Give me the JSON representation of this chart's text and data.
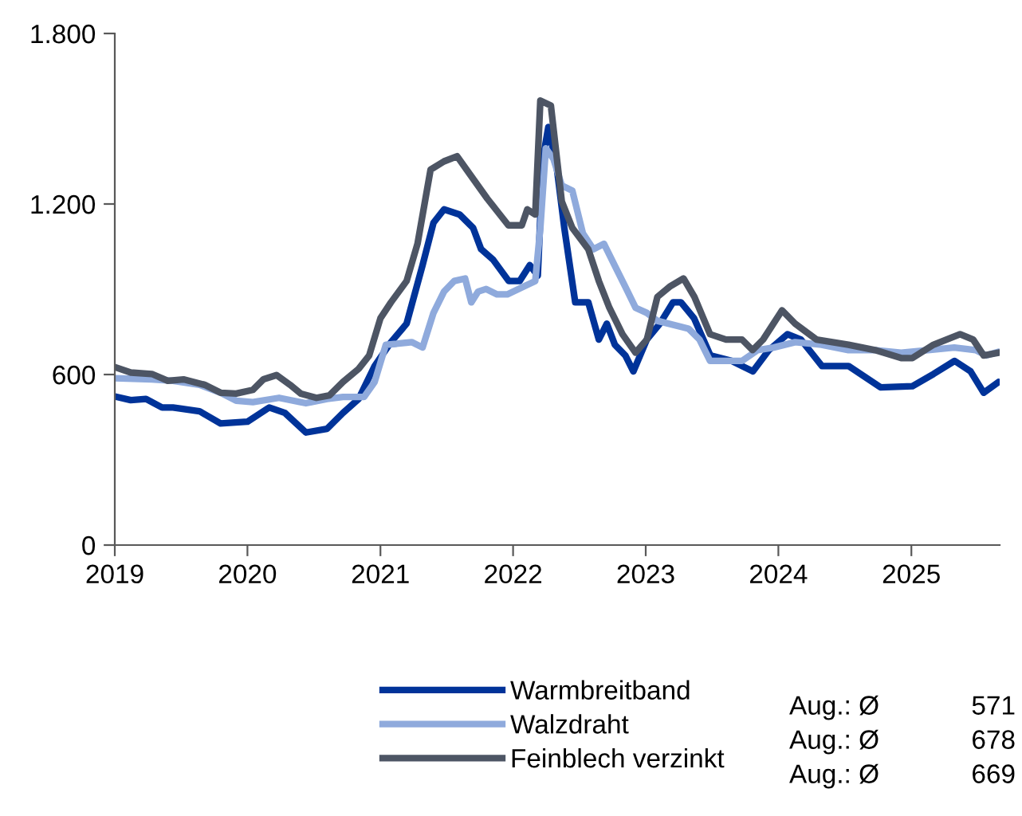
{
  "chart_data": {
    "type": "line",
    "xlim": [
      "2019",
      "2025-09-01"
    ],
    "xticks": [
      "2019",
      "2020",
      "2021",
      "2022",
      "2023",
      "2024",
      "2025"
    ],
    "ylim": [
      0,
      1800
    ],
    "yticks": [
      0,
      600,
      {
        "value": 1200,
        "label": "1.200"
      },
      {
        "value": 1800,
        "label": "1.800"
      }
    ],
    "grid": false,
    "legend": "bottom",
    "marker": "none",
    "line_style": "solid",
    "series": [
      {
        "name": "Warmbreitband",
        "color": "#003399",
        "x": [
          "2019-01-01",
          "2019-02-14",
          "2019-03-28",
          "2019-05-11",
          "2019-06-10",
          "2019-08-22",
          "2019-10-19",
          "2020-01-01",
          "2020-03-01",
          "2020-04-13",
          "2020-06-10",
          "2020-08-07",
          "2020-09-20",
          "2020-11-02",
          "2020-12-16",
          "2021-01-30",
          "2021-03-14",
          "2021-04-27",
          "2021-05-27",
          "2021-06-25",
          "2021-08-07",
          "2021-09-13",
          "2021-10-05",
          "2021-11-07",
          "2021-12-20",
          "2022-01-19",
          "2022-02-16",
          "2022-03-10",
          "2022-03-24",
          "2022-04-08",
          "2022-04-30",
          "2022-05-22",
          "2022-06-21",
          "2022-07-27",
          "2022-08-25",
          "2022-09-16",
          "2022-10-08",
          "2022-11-06",
          "2022-11-28",
          "2023-01-04",
          "2023-02-09",
          "2023-03-17",
          "2023-04-08",
          "2023-05-14",
          "2023-06-28",
          "2023-08-25",
          "2023-10-23",
          "2023-12-06",
          "2024-01-26",
          "2024-03-03",
          "2024-04-30",
          "2024-07-12",
          "2024-10-08",
          "2025-01-04",
          "2025-03-03",
          "2025-04-30",
          "2025-06-13",
          "2025-07-19",
          "2025-08-29"
        ],
        "values": [
          523,
          510,
          514,
          484,
          484,
          471,
          428,
          434,
          484,
          465,
          396,
          409,
          465,
          514,
          630,
          714,
          779,
          985,
          1134,
          1181,
          1163,
          1116,
          1041,
          1004,
          929,
          929,
          985,
          948,
          1359,
          1471,
          1340,
          1116,
          854,
          854,
          723,
          779,
          705,
          667,
          611,
          723,
          779,
          854,
          854,
          798,
          667,
          648,
          611,
          686,
          742,
          723,
          630,
          630,
          555,
          559,
          602,
          648,
          611,
          536,
          574
        ]
      },
      {
        "name": "Walzdraht",
        "color": "#8faadc",
        "x": [
          "2019-01-01",
          "2019-04-13",
          "2019-06-10",
          "2019-08-22",
          "2019-10-19",
          "2019-12-01",
          "2020-01-16",
          "2020-03-28",
          "2020-06-10",
          "2020-08-07",
          "2020-09-20",
          "2020-11-17",
          "2020-12-16",
          "2021-01-16",
          "2021-02-14",
          "2021-03-28",
          "2021-04-27",
          "2021-05-27",
          "2021-06-25",
          "2021-07-23",
          "2021-08-22",
          "2021-09-08",
          "2021-09-27",
          "2021-10-19",
          "2021-11-18",
          "2021-12-16",
          "2022-02-02",
          "2022-03-03",
          "2022-03-17",
          "2022-04-01",
          "2022-04-22",
          "2022-05-15",
          "2022-06-13",
          "2022-07-12",
          "2022-08-10",
          "2022-09-08",
          "2022-10-07",
          "2022-11-05",
          "2022-12-04",
          "2023-01-04",
          "2023-02-02",
          "2023-04-29",
          "2023-05-29",
          "2023-06-27",
          "2023-08-10",
          "2023-09-23",
          "2023-11-05",
          "2023-12-19",
          "2024-02-16",
          "2024-04-29",
          "2024-07-12",
          "2024-09-23",
          "2024-12-04",
          "2025-02-16",
          "2025-04-29",
          "2025-06-27",
          "2025-07-26",
          "2025-08-29"
        ],
        "values": [
          587,
          583,
          578,
          564,
          536,
          508,
          503,
          518,
          499,
          514,
          521,
          521,
          574,
          705,
          708,
          714,
          695,
          817,
          892,
          929,
          938,
          854,
          892,
          901,
          882,
          882,
          911,
          929,
          1116,
          1396,
          1359,
          1265,
          1247,
          1097,
          1041,
          1060,
          985,
          911,
          835,
          817,
          789,
          761,
          723,
          648,
          648,
          648,
          686,
          695,
          714,
          705,
          686,
          686,
          677,
          686,
          695,
          686,
          667,
          680
        ]
      },
      {
        "name": "Feinblech verzinkt",
        "color": "#4d5564",
        "x": [
          "2019-01-01",
          "2019-02-14",
          "2019-04-13",
          "2019-05-27",
          "2019-07-09",
          "2019-09-05",
          "2019-10-19",
          "2019-12-01",
          "2020-01-16",
          "2020-02-14",
          "2020-03-21",
          "2020-04-27",
          "2020-05-27",
          "2020-07-09",
          "2020-08-14",
          "2020-09-20",
          "2020-11-02",
          "2020-12-01",
          "2021-01-01",
          "2021-01-30",
          "2021-03-14",
          "2021-04-13",
          "2021-05-19",
          "2021-06-25",
          "2021-07-31",
          "2021-09-05",
          "2021-10-22",
          "2021-11-20",
          "2021-12-19",
          "2022-01-25",
          "2022-02-09",
          "2022-03-03",
          "2022-03-17",
          "2022-04-15",
          "2022-05-15",
          "2022-06-13",
          "2022-07-27",
          "2022-08-25",
          "2022-09-23",
          "2022-10-29",
          "2022-12-04",
          "2023-01-04",
          "2023-02-02",
          "2023-03-10",
          "2023-04-15",
          "2023-05-15",
          "2023-06-27",
          "2023-08-10",
          "2023-09-23",
          "2023-10-22",
          "2023-11-20",
          "2024-01-11",
          "2024-02-16",
          "2024-04-15",
          "2024-07-12",
          "2024-09-23",
          "2024-12-04",
          "2025-01-04",
          "2025-03-03",
          "2025-05-15",
          "2025-06-20",
          "2025-07-19",
          "2025-08-29"
        ],
        "values": [
          626,
          607,
          602,
          578,
          583,
          564,
          536,
          533,
          546,
          583,
          598,
          564,
          533,
          518,
          527,
          574,
          620,
          667,
          798,
          854,
          929,
          1060,
          1321,
          1350,
          1368,
          1303,
          1219,
          1172,
          1125,
          1125,
          1181,
          1163,
          1564,
          1546,
          1209,
          1116,
          1041,
          929,
          835,
          742,
          677,
          723,
          873,
          911,
          938,
          873,
          742,
          723,
          723,
          686,
          723,
          826,
          779,
          723,
          705,
          686,
          658,
          658,
          705,
          742,
          723,
          667,
          677
        ]
      }
    ],
    "annotations": [
      "Aug.: Ø",
      "571",
      "Aug.: Ø",
      "678",
      "Aug.: Ø",
      "669"
    ]
  }
}
